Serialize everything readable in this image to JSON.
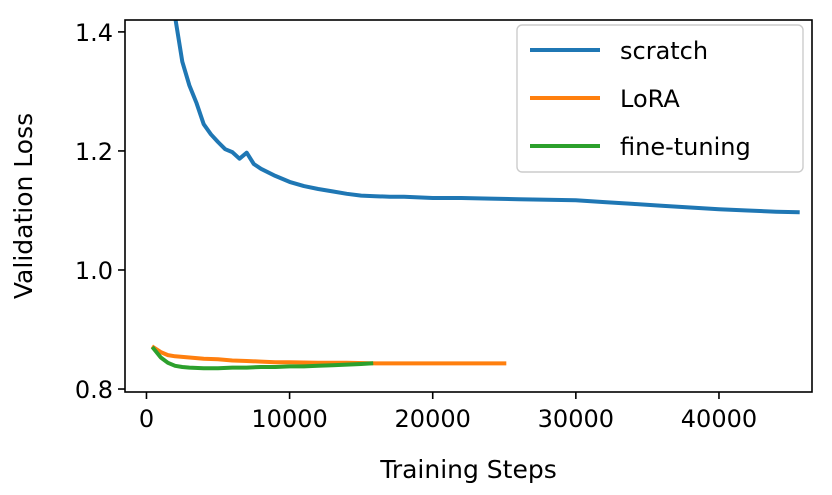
{
  "chart_data": {
    "type": "line",
    "title": "",
    "xlabel": "Training Steps",
    "ylabel": "Validation Loss",
    "xlim": [
      -1500,
      46500
    ],
    "ylim": [
      0.795,
      1.42
    ],
    "xticks": [
      {
        "value": 0,
        "label": "0"
      },
      {
        "value": 10000,
        "label": "10000"
      },
      {
        "value": 20000,
        "label": "20000"
      },
      {
        "value": 30000,
        "label": "30000"
      },
      {
        "value": 40000,
        "label": "40000"
      }
    ],
    "yticks": [
      {
        "value": 0.8,
        "label": "0.8"
      },
      {
        "value": 1.0,
        "label": "1.0"
      },
      {
        "value": 1.2,
        "label": "1.2"
      },
      {
        "value": 1.4,
        "label": "1.4"
      }
    ],
    "grid": false,
    "legend": {
      "position": "top-right"
    },
    "series": [
      {
        "name": "scratch",
        "color": "#1f77b4",
        "x": [
          2000,
          2500,
          3000,
          3500,
          4000,
          4500,
          5000,
          5500,
          6000,
          6500,
          7000,
          7500,
          8000,
          9000,
          10000,
          11000,
          12000,
          13000,
          14000,
          15000,
          16000,
          17000,
          18000,
          19000,
          20000,
          22000,
          24000,
          26000,
          28000,
          30000,
          32000,
          34000,
          36000,
          38000,
          40000,
          42000,
          44000,
          45500
        ],
        "y": [
          1.425,
          1.35,
          1.31,
          1.28,
          1.245,
          1.228,
          1.215,
          1.203,
          1.198,
          1.187,
          1.197,
          1.178,
          1.17,
          1.158,
          1.148,
          1.141,
          1.136,
          1.132,
          1.128,
          1.125,
          1.124,
          1.123,
          1.123,
          1.122,
          1.121,
          1.121,
          1.12,
          1.119,
          1.118,
          1.117,
          1.114,
          1.111,
          1.108,
          1.105,
          1.102,
          1.1,
          1.098,
          1.097
        ]
      },
      {
        "name": "LoRA",
        "color": "#ff7f0e",
        "x": [
          500,
          1000,
          1500,
          2000,
          3000,
          4000,
          5000,
          6000,
          7000,
          8000,
          9000,
          10000,
          12000,
          14000,
          16000,
          18000,
          20000,
          22000,
          25000
        ],
        "y": [
          0.87,
          0.862,
          0.857,
          0.855,
          0.853,
          0.851,
          0.85,
          0.848,
          0.847,
          0.846,
          0.845,
          0.845,
          0.844,
          0.844,
          0.843,
          0.843,
          0.843,
          0.843,
          0.843
        ]
      },
      {
        "name": "fine-tuning",
        "color": "#2ca02c",
        "x": [
          500,
          1000,
          1500,
          2000,
          2500,
          3000,
          4000,
          5000,
          6000,
          7000,
          8000,
          9000,
          10000,
          11000,
          12000,
          13000,
          14000,
          15000,
          15700
        ],
        "y": [
          0.868,
          0.853,
          0.844,
          0.839,
          0.837,
          0.836,
          0.835,
          0.835,
          0.836,
          0.836,
          0.837,
          0.837,
          0.838,
          0.838,
          0.839,
          0.84,
          0.841,
          0.842,
          0.843
        ]
      }
    ]
  }
}
